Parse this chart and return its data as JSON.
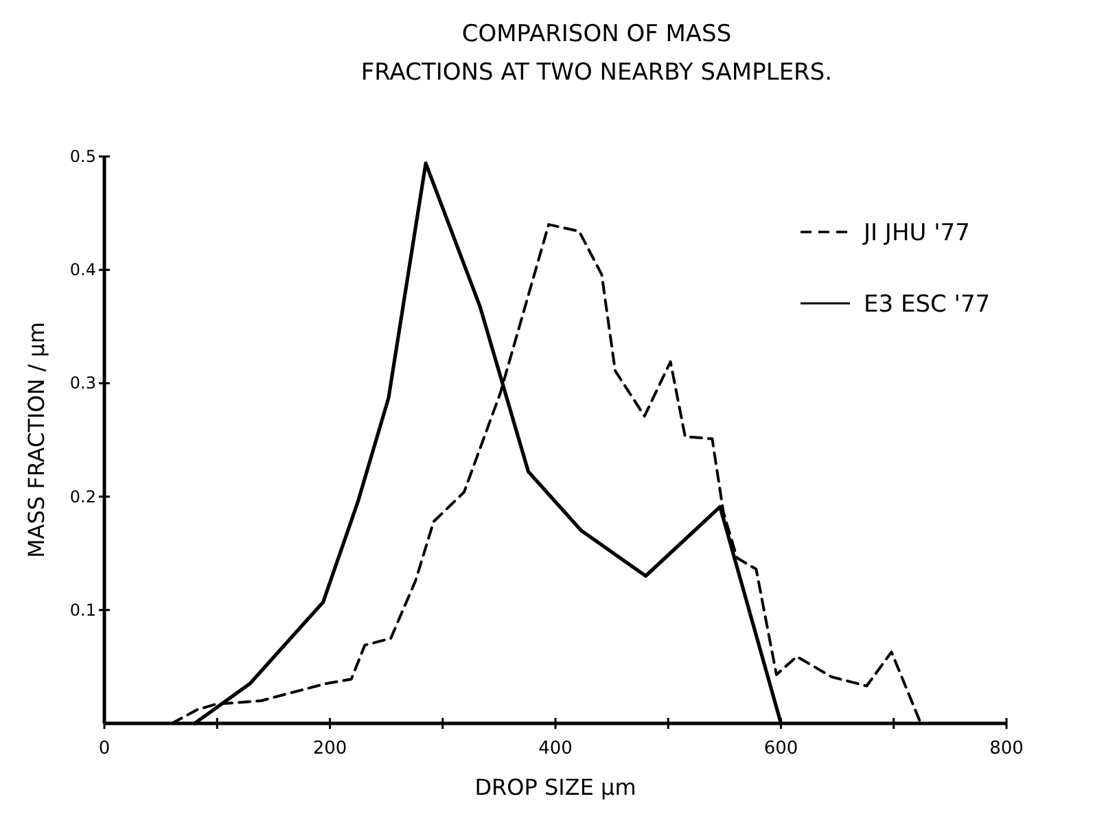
{
  "chart_data": {
    "type": "line",
    "title": "COMPARISON OF MASS\nFRACTIONS AT TWO NEARBY SAMPLERS.",
    "xlabel": "DROP SIZE   µm",
    "ylabel": "MASS FRACTION / µm",
    "xlim": [
      0,
      800
    ],
    "xticks": [
      0,
      {
        "value": 100,
        "label": null
      },
      200,
      {
        "value": 300,
        "label": null
      },
      400,
      {
        "value": 500,
        "label": null
      },
      600,
      {
        "value": 700,
        "label": null
      },
      800
    ],
    "ylim": [
      0,
      0.5
    ],
    "yticks": [
      0.1,
      0.2,
      0.3,
      0.4,
      0.5
    ],
    "grid": false,
    "legend": "top right",
    "series": [
      {
        "name": "JI   JHU '77",
        "color": "#000000",
        "line_style": "dashed",
        "x": [
          60,
          82,
          99,
          139,
          196,
          219,
          231,
          254,
          276,
          292,
          319,
          351,
          394,
          421,
          441,
          453,
          479,
          502,
          515,
          539,
          549,
          561,
          578,
          596,
          614,
          645,
          676,
          698,
          724
        ],
        "values": [
          0,
          0.012,
          0.017,
          0.02,
          0.035,
          0.039,
          0.069,
          0.075,
          0.126,
          0.178,
          0.204,
          0.291,
          0.44,
          0.434,
          0.396,
          0.311,
          0.271,
          0.319,
          0.253,
          0.251,
          0.186,
          0.146,
          0.136,
          0.043,
          0.059,
          0.041,
          0.033,
          0.063,
          0
        ]
      },
      {
        "name": "E3  ESC '77",
        "color": "#000000",
        "line_style": "solid",
        "x": [
          80,
          129,
          194,
          225,
          252,
          285,
          333,
          376,
          423,
          480,
          546,
          600
        ],
        "values": [
          0,
          0.035,
          0.107,
          0.196,
          0.287,
          0.494,
          0.368,
          0.222,
          0.17,
          0.13,
          0.191,
          0
        ]
      }
    ]
  }
}
